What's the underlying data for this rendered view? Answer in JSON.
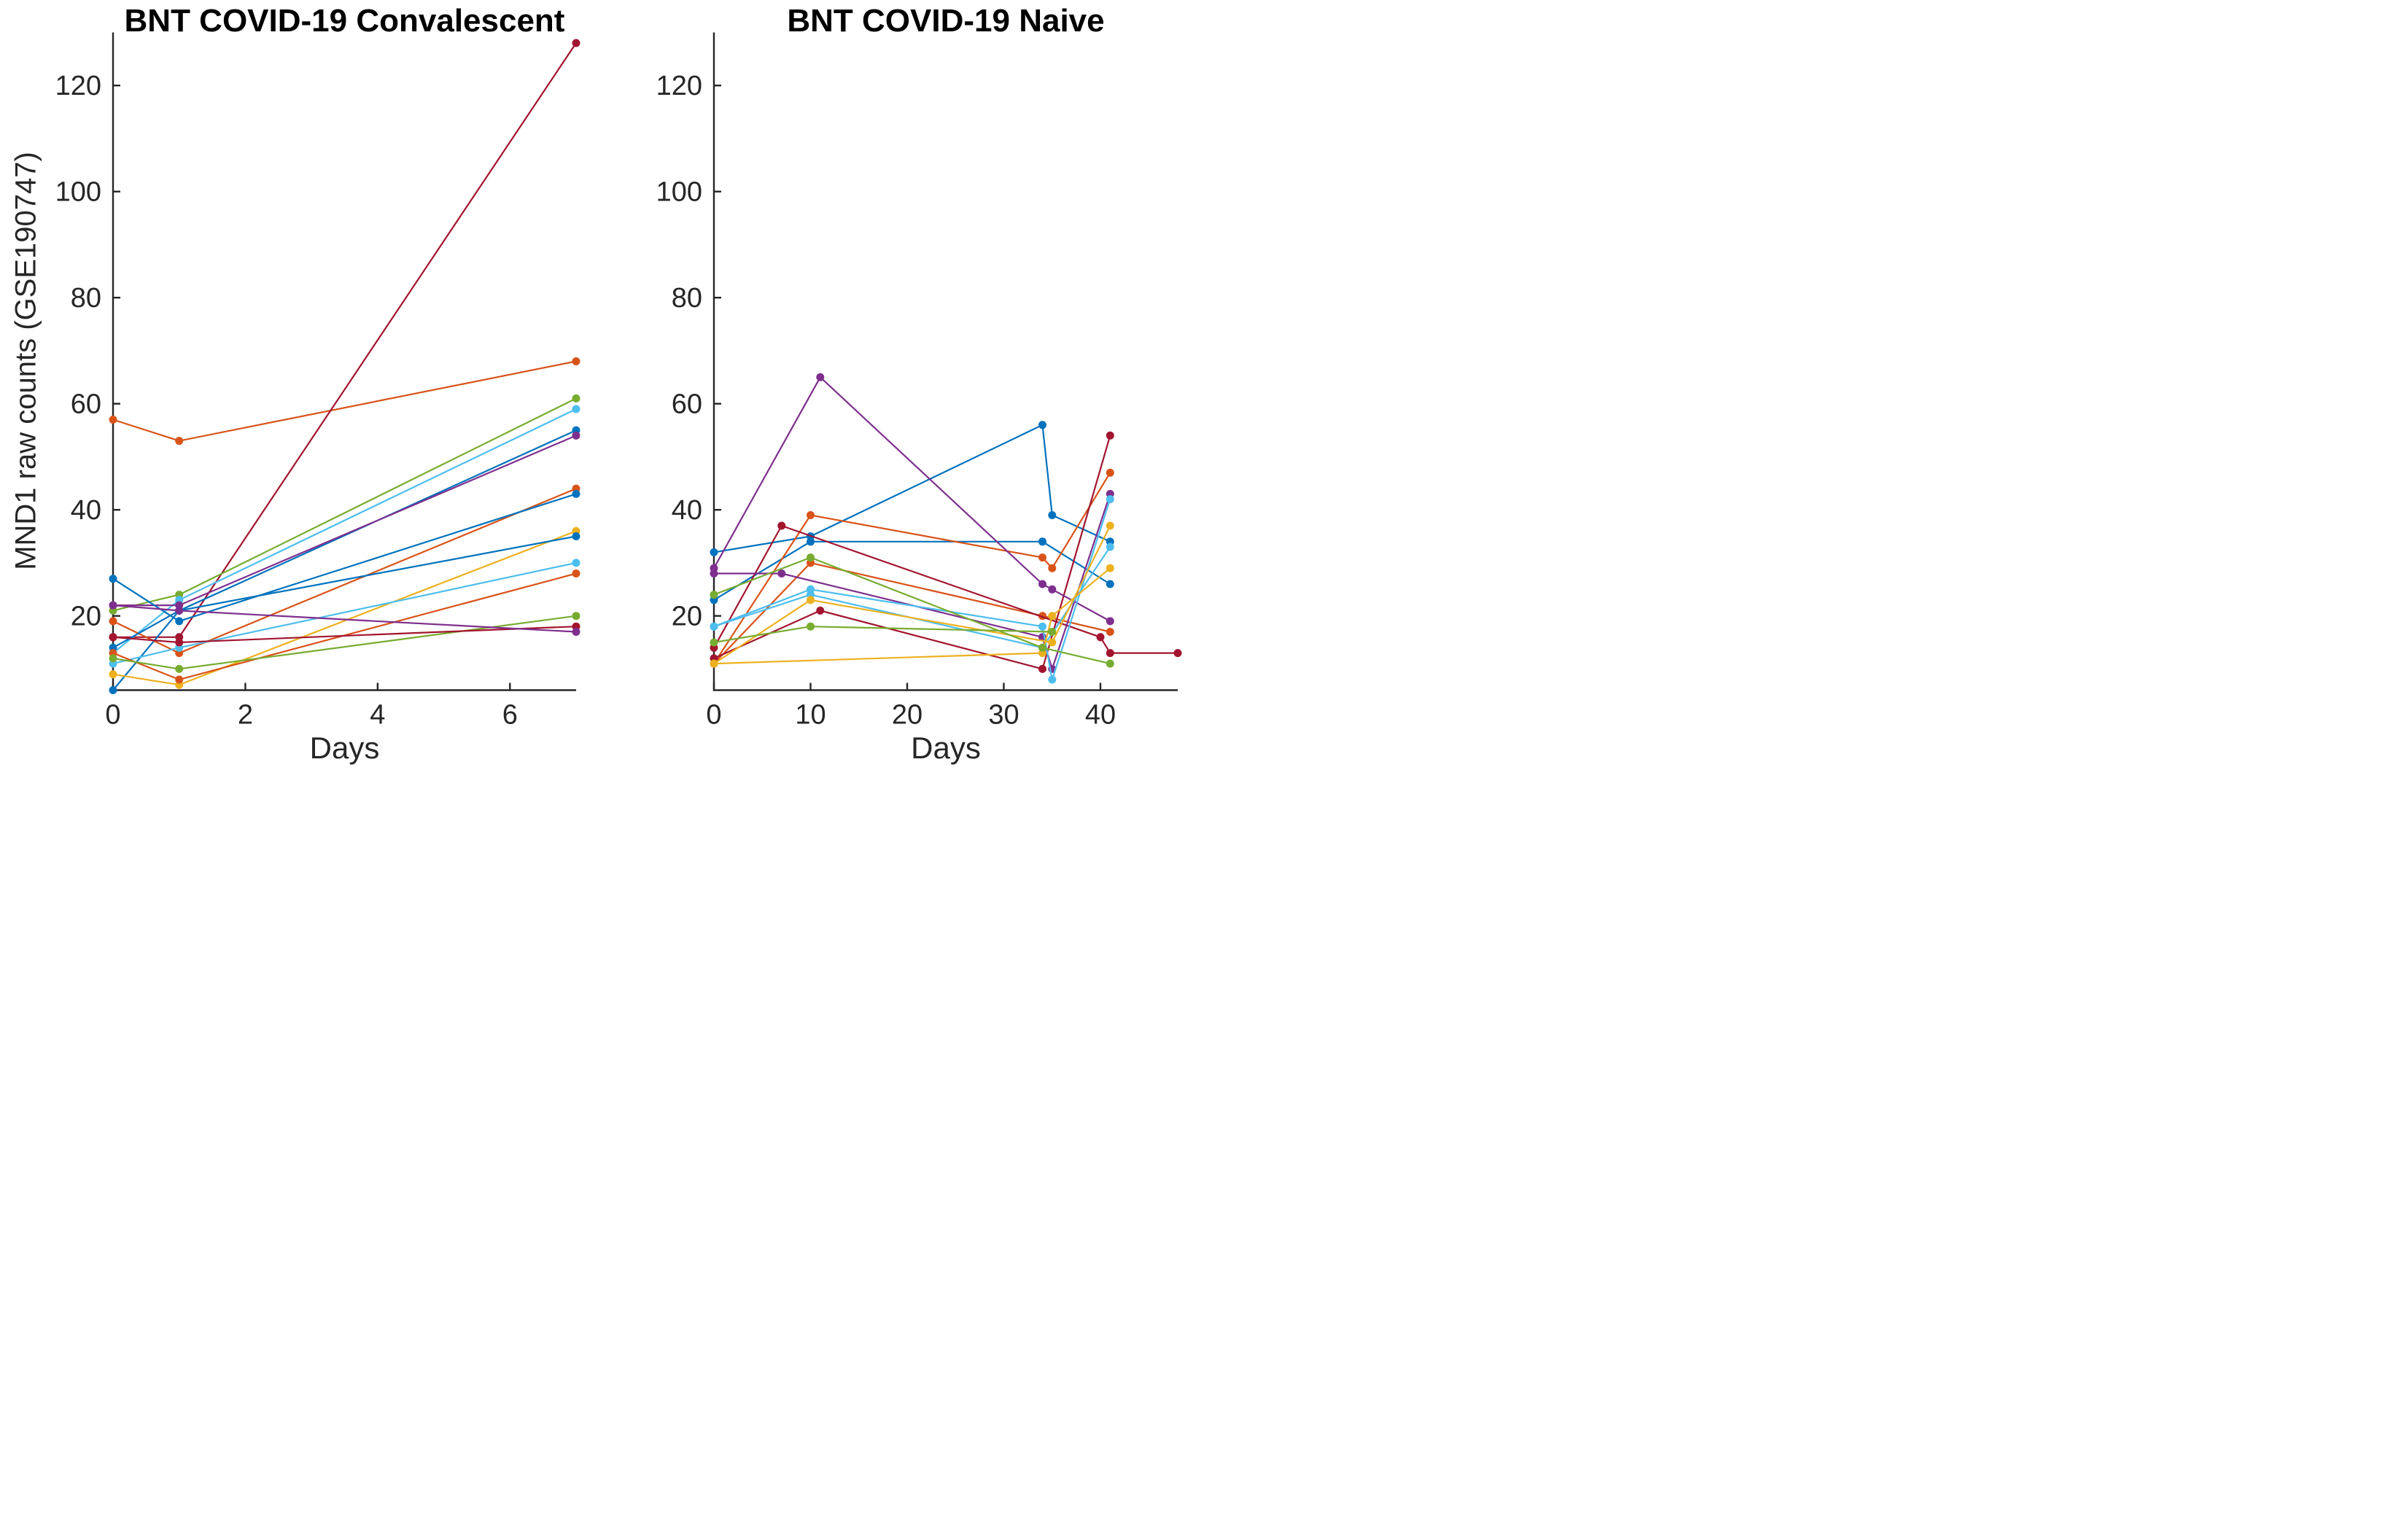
{
  "styles": {
    "axis_color": "#262626",
    "tick_label_color": "#262626",
    "title_color": "#000000",
    "background": "#ffffff",
    "palette": {
      "blue": "#0072BD",
      "orange": "#D95319",
      "yellow": "#EDB120",
      "purple": "#7E2F8E",
      "green": "#77AC30",
      "cyan": "#4DBEEE",
      "darkred": "#A2142F"
    }
  },
  "chart_data": [
    {
      "type": "line",
      "title": "BNT COVID-19 Convalescent",
      "xlabel": "Days",
      "ylabel": "MND1 raw counts (GSE190747)",
      "xlim": [
        0,
        7
      ],
      "ylim": [
        6,
        130
      ],
      "xticks": [
        0,
        2,
        4,
        6
      ],
      "yticks": [
        20,
        40,
        60,
        80,
        100,
        120
      ],
      "grid": false,
      "legend": "none",
      "marker": "dot",
      "series": [
        {
          "name": "conv-orange-1",
          "color": "#D95319",
          "x": [
            0,
            1,
            7
          ],
          "y": [
            57,
            53,
            68
          ]
        },
        {
          "name": "conv-darkred-1",
          "color": "#A2142F",
          "x": [
            0,
            1,
            7
          ],
          "y": [
            16,
            16,
            128
          ]
        },
        {
          "name": "conv-green-1",
          "color": "#77AC30",
          "x": [
            0,
            1,
            7
          ],
          "y": [
            21,
            24,
            61
          ]
        },
        {
          "name": "conv-cyan-1",
          "color": "#4DBEEE",
          "x": [
            0,
            1,
            7
          ],
          "y": [
            13,
            23,
            59
          ]
        },
        {
          "name": "conv-blue-1",
          "color": "#0072BD",
          "x": [
            0,
            1,
            7
          ],
          "y": [
            6,
            21,
            55
          ]
        },
        {
          "name": "conv-purple-1",
          "color": "#7E2F8E",
          "x": [
            0,
            1,
            7
          ],
          "y": [
            22,
            22,
            54
          ]
        },
        {
          "name": "conv-orange-2",
          "color": "#D95319",
          "x": [
            0,
            1,
            7
          ],
          "y": [
            19,
            13,
            44
          ]
        },
        {
          "name": "conv-blue-2",
          "color": "#0072BD",
          "x": [
            0,
            1,
            7
          ],
          "y": [
            27,
            19,
            43
          ]
        },
        {
          "name": "conv-yellow-1",
          "color": "#EDB120",
          "x": [
            0,
            1,
            7
          ],
          "y": [
            9,
            7,
            36
          ]
        },
        {
          "name": "conv-blue-3",
          "color": "#0072BD",
          "x": [
            0,
            1,
            7
          ],
          "y": [
            14,
            21,
            35
          ]
        },
        {
          "name": "conv-cyan-2",
          "color": "#4DBEEE",
          "x": [
            0,
            1,
            7
          ],
          "y": [
            11,
            14,
            30
          ]
        },
        {
          "name": "conv-orange-3",
          "color": "#D95319",
          "x": [
            0,
            1,
            7
          ],
          "y": [
            13,
            8,
            28
          ]
        },
        {
          "name": "conv-green-2",
          "color": "#77AC30",
          "x": [
            0,
            1,
            7
          ],
          "y": [
            12,
            10,
            20
          ]
        },
        {
          "name": "conv-darkred-2",
          "color": "#A2142F",
          "x": [
            0,
            1,
            7
          ],
          "y": [
            16,
            15,
            18
          ]
        },
        {
          "name": "conv-purple-2",
          "color": "#7E2F8E",
          "x": [
            0,
            1,
            7
          ],
          "y": [
            22,
            21,
            17
          ]
        }
      ]
    },
    {
      "type": "line",
      "title": "BNT COVID-19 Naive",
      "xlabel": "Days",
      "ylabel": "",
      "xlim": [
        0,
        48
      ],
      "ylim": [
        6,
        130
      ],
      "xticks": [
        0,
        10,
        20,
        30,
        40
      ],
      "yticks": [
        20,
        40,
        60,
        80,
        100,
        120
      ],
      "grid": false,
      "legend": "none",
      "marker": "dot",
      "series": [
        {
          "name": "naive-blue-1",
          "color": "#0072BD",
          "x": [
            0,
            10,
            34,
            35,
            41
          ],
          "y": [
            32,
            35,
            56,
            39,
            34
          ]
        },
        {
          "name": "naive-blue-2",
          "color": "#0072BD",
          "x": [
            0,
            10,
            34,
            41
          ],
          "y": [
            23,
            34,
            34,
            26
          ]
        },
        {
          "name": "naive-orange-1",
          "color": "#D95319",
          "x": [
            0,
            10,
            34,
            35,
            41
          ],
          "y": [
            11,
            39,
            31,
            29,
            47
          ]
        },
        {
          "name": "naive-orange-2",
          "color": "#D95319",
          "x": [
            0,
            10,
            34,
            41
          ],
          "y": [
            11,
            30,
            20,
            17
          ]
        },
        {
          "name": "naive-darkred-1",
          "color": "#A2142F",
          "x": [
            0,
            7,
            40,
            41,
            48
          ],
          "y": [
            14,
            37,
            16,
            13,
            13
          ]
        },
        {
          "name": "naive-darkred-2",
          "color": "#A2142F",
          "x": [
            0,
            11,
            34,
            41
          ],
          "y": [
            12,
            21,
            10,
            54
          ]
        },
        {
          "name": "naive-purple-1",
          "color": "#7E2F8E",
          "x": [
            0,
            11,
            34,
            35,
            41
          ],
          "y": [
            29,
            65,
            26,
            25,
            19
          ]
        },
        {
          "name": "naive-purple-2",
          "color": "#7E2F8E",
          "x": [
            0,
            7,
            34,
            35,
            41
          ],
          "y": [
            28,
            28,
            16,
            10,
            43
          ]
        },
        {
          "name": "naive-cyan-1",
          "color": "#4DBEEE",
          "x": [
            0,
            10,
            34,
            35,
            41
          ],
          "y": [
            18,
            25,
            18,
            8,
            42
          ]
        },
        {
          "name": "naive-cyan-2",
          "color": "#4DBEEE",
          "x": [
            0,
            10,
            34,
            41
          ],
          "y": [
            18,
            24,
            14,
            33
          ]
        },
        {
          "name": "naive-yellow-1",
          "color": "#EDB120",
          "x": [
            0,
            10,
            35,
            41
          ],
          "y": [
            11,
            23,
            15,
            37
          ]
        },
        {
          "name": "naive-yellow-2",
          "color": "#EDB120",
          "x": [
            0,
            34,
            35,
            41
          ],
          "y": [
            11,
            13,
            20,
            29
          ]
        },
        {
          "name": "naive-green-1",
          "color": "#77AC30",
          "x": [
            0,
            10,
            34,
            41
          ],
          "y": [
            24,
            31,
            14,
            11
          ]
        },
        {
          "name": "naive-green-2",
          "color": "#77AC30",
          "x": [
            0,
            10,
            35
          ],
          "y": [
            15,
            18,
            17
          ]
        }
      ]
    }
  ]
}
